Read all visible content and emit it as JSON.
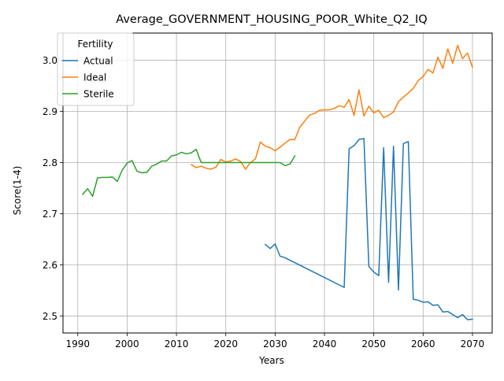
{
  "chart_data": {
    "type": "line",
    "title": "Average_GOVERNMENT_HOUSING_POOR_White_Q2_IQ",
    "xlabel": "Years",
    "ylabel": "Score(1-4)",
    "xlim": [
      1987,
      2074
    ],
    "ylim": [
      2.467,
      3.053
    ],
    "xticks": [
      1990,
      2000,
      2010,
      2020,
      2030,
      2040,
      2050,
      2060,
      2070
    ],
    "yticks": [
      2.5,
      2.6,
      2.7,
      2.8,
      2.9,
      3.0
    ],
    "grid": true,
    "legend": {
      "title": "Fertility",
      "placement": "top-left"
    },
    "series": [
      {
        "name": "Actual",
        "color": "#1f77b4",
        "points": [
          [
            2028,
            2.64
          ],
          [
            2029,
            2.632
          ],
          [
            2030,
            2.641
          ],
          [
            2031,
            2.617
          ],
          [
            2032,
            2.614
          ],
          [
            2044,
            2.556
          ],
          [
            2045,
            2.827
          ],
          [
            2046,
            2.833
          ],
          [
            2047,
            2.845
          ],
          [
            2048,
            2.847
          ],
          [
            2049,
            2.597
          ],
          [
            2050,
            2.586
          ],
          [
            2051,
            2.579
          ],
          [
            2052,
            2.829
          ],
          [
            2053,
            2.566
          ],
          [
            2054,
            2.832
          ],
          [
            2055,
            2.551
          ],
          [
            2056,
            2.837
          ],
          [
            2057,
            2.841
          ],
          [
            2058,
            2.533
          ],
          [
            2059,
            2.531
          ],
          [
            2060,
            2.527
          ],
          [
            2061,
            2.528
          ],
          [
            2062,
            2.521
          ],
          [
            2063,
            2.522
          ],
          [
            2064,
            2.508
          ],
          [
            2065,
            2.509
          ],
          [
            2066,
            2.503
          ],
          [
            2067,
            2.497
          ],
          [
            2068,
            2.503
          ],
          [
            2069,
            2.493
          ],
          [
            2070,
            2.494
          ]
        ]
      },
      {
        "name": "Ideal",
        "color": "#ff7f0e",
        "points": [
          [
            2013,
            2.796
          ],
          [
            2014,
            2.79
          ],
          [
            2015,
            2.793
          ],
          [
            2016,
            2.789
          ],
          [
            2017,
            2.787
          ],
          [
            2018,
            2.791
          ],
          [
            2019,
            2.806
          ],
          [
            2020,
            2.801
          ],
          [
            2021,
            2.803
          ],
          [
            2022,
            2.807
          ],
          [
            2023,
            2.802
          ],
          [
            2024,
            2.787
          ],
          [
            2025,
            2.8
          ],
          [
            2026,
            2.807
          ],
          [
            2027,
            2.84
          ],
          [
            2028,
            2.832
          ],
          [
            2029,
            2.829
          ],
          [
            2030,
            2.823
          ],
          [
            2031,
            2.83
          ],
          [
            2032,
            2.838
          ],
          [
            2033,
            2.845
          ],
          [
            2034,
            2.845
          ],
          [
            2035,
            2.869
          ],
          [
            2036,
            2.881
          ],
          [
            2037,
            2.893
          ],
          [
            2038,
            2.896
          ],
          [
            2039,
            2.902
          ],
          [
            2040,
            2.903
          ],
          [
            2041,
            2.903
          ],
          [
            2042,
            2.906
          ],
          [
            2043,
            2.911
          ],
          [
            2044,
            2.908
          ],
          [
            2045,
            2.923
          ],
          [
            2046,
            2.892
          ],
          [
            2047,
            2.942
          ],
          [
            2048,
            2.891
          ],
          [
            2049,
            2.91
          ],
          [
            2050,
            2.897
          ],
          [
            2051,
            2.902
          ],
          [
            2052,
            2.888
          ],
          [
            2053,
            2.892
          ],
          [
            2054,
            2.899
          ],
          [
            2055,
            2.919
          ],
          [
            2056,
            2.928
          ],
          [
            2057,
            2.936
          ],
          [
            2058,
            2.945
          ],
          [
            2059,
            2.96
          ],
          [
            2060,
            2.968
          ],
          [
            2061,
            2.982
          ],
          [
            2062,
            2.975
          ],
          [
            2063,
            3.006
          ],
          [
            2064,
            2.984
          ],
          [
            2065,
            3.022
          ],
          [
            2066,
            2.994
          ],
          [
            2067,
            3.029
          ],
          [
            2068,
            3.003
          ],
          [
            2069,
            3.014
          ],
          [
            2070,
            2.986
          ]
        ]
      },
      {
        "name": "Sterile",
        "color": "#2ca02c",
        "points": [
          [
            1991,
            2.738
          ],
          [
            1992,
            2.749
          ],
          [
            1993,
            2.734
          ],
          [
            1994,
            2.77
          ],
          [
            1995,
            2.771
          ],
          [
            1996,
            2.771
          ],
          [
            1997,
            2.772
          ],
          [
            1998,
            2.763
          ],
          [
            1999,
            2.785
          ],
          [
            2000,
            2.799
          ],
          [
            2001,
            2.804
          ],
          [
            2002,
            2.783
          ],
          [
            2003,
            2.78
          ],
          [
            2004,
            2.781
          ],
          [
            2005,
            2.793
          ],
          [
            2006,
            2.797
          ],
          [
            2007,
            2.803
          ],
          [
            2008,
            2.803
          ],
          [
            2009,
            2.813
          ],
          [
            2010,
            2.815
          ],
          [
            2011,
            2.82
          ],
          [
            2012,
            2.817
          ],
          [
            2013,
            2.819
          ],
          [
            2014,
            2.826
          ],
          [
            2015,
            2.8
          ],
          [
            2016,
            2.8
          ],
          [
            2017,
            2.8
          ],
          [
            2018,
            2.8
          ],
          [
            2019,
            2.8
          ],
          [
            2020,
            2.8
          ],
          [
            2021,
            2.8
          ],
          [
            2022,
            2.8
          ],
          [
            2023,
            2.8
          ],
          [
            2024,
            2.8
          ],
          [
            2025,
            2.8
          ],
          [
            2026,
            2.8
          ],
          [
            2027,
            2.8
          ],
          [
            2028,
            2.8
          ],
          [
            2029,
            2.8
          ],
          [
            2030,
            2.8
          ],
          [
            2031,
            2.8
          ],
          [
            2032,
            2.794
          ],
          [
            2033,
            2.797
          ],
          [
            2034,
            2.813
          ]
        ]
      }
    ]
  }
}
